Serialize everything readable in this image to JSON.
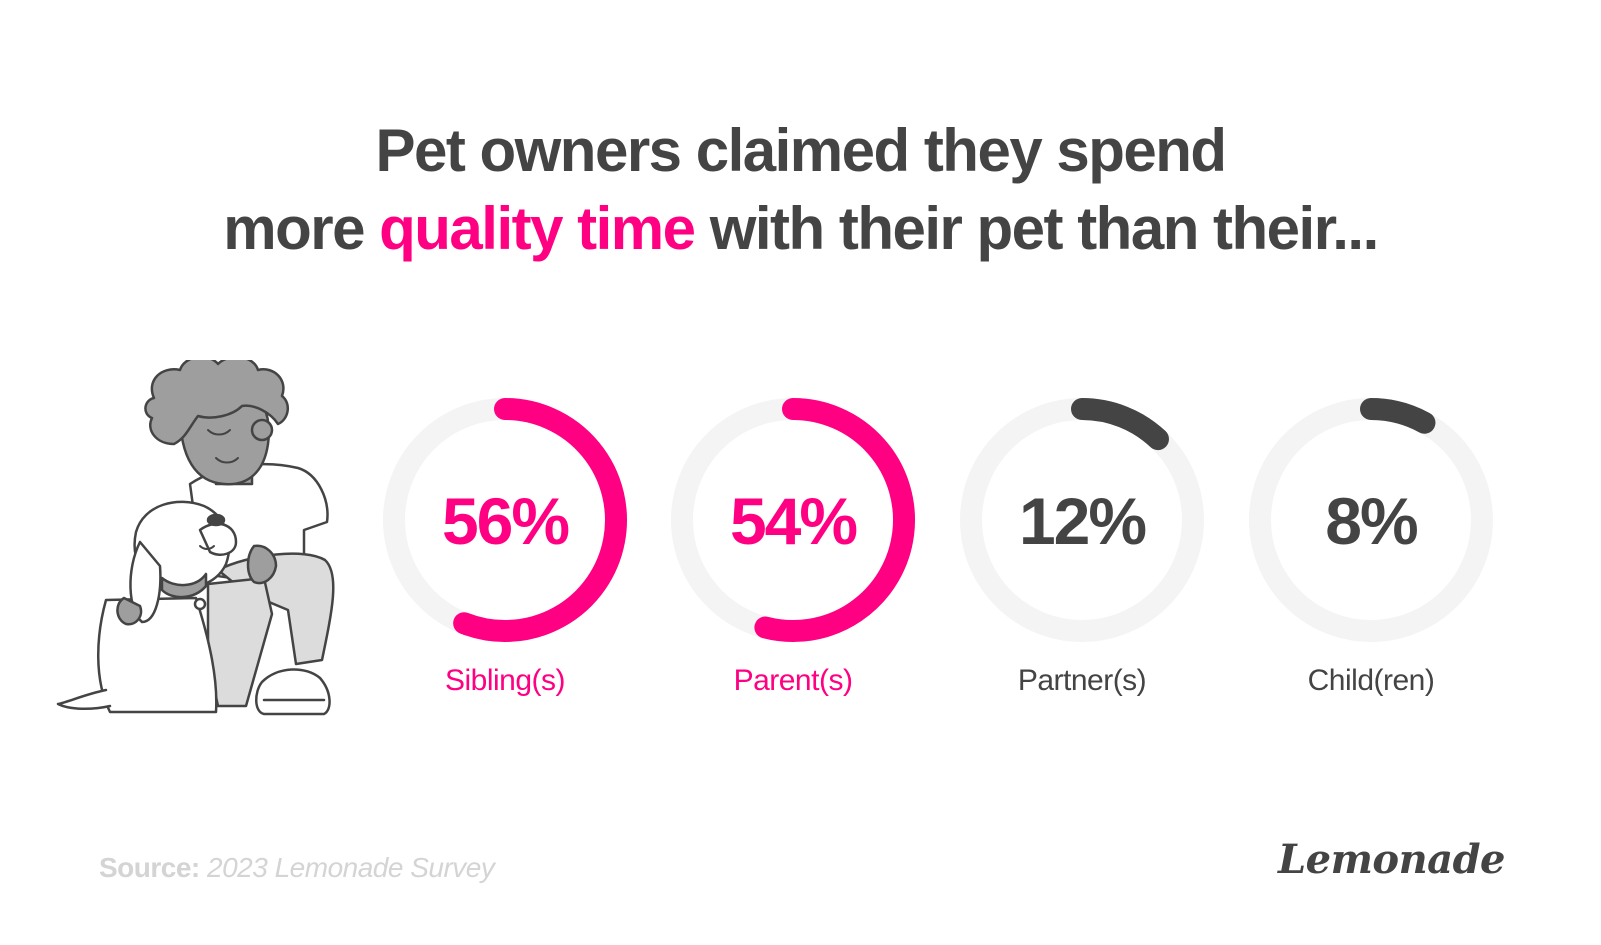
{
  "headline": {
    "line1": "Pet owners claimed they spend",
    "line2_before": "more ",
    "line2_highlight": "quality time",
    "line2_after": " with their pet than their..."
  },
  "colors": {
    "accent": "#ff0083",
    "dark": "#444444",
    "track": "#f4f4f4",
    "source": "#d4d4d4"
  },
  "chart_data": {
    "type": "donut",
    "unit": "%",
    "max": 100,
    "categories": [
      "Sibling(s)",
      "Parent(s)",
      "Partner(s)",
      "Child(ren)"
    ],
    "values": [
      56,
      54,
      12,
      8
    ],
    "value_labels": [
      "56%",
      "54%",
      "12%",
      "8%"
    ],
    "highlighted": [
      true,
      true,
      false,
      false
    ]
  },
  "footer": {
    "source_label": "Source:",
    "source_name": "2023 Lemonade Survey",
    "brand": "Lemonade"
  },
  "icons": {
    "illustration": "person-hugging-dog-icon"
  }
}
